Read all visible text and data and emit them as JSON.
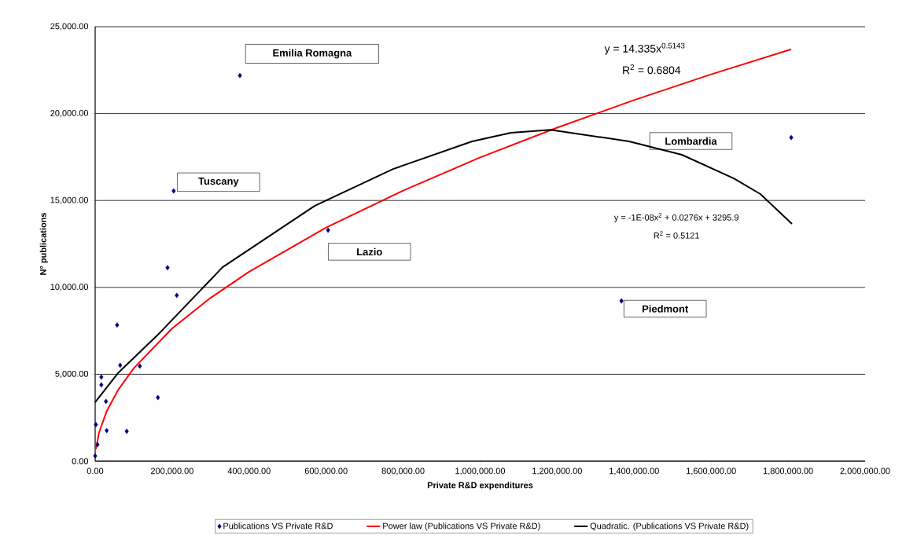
{
  "chart_data": {
    "type": "scatter",
    "xlabel": "Private R&D expenditures",
    "ylabel": "N° publications",
    "xlim": [
      0,
      2000000
    ],
    "ylim": [
      0,
      25000
    ],
    "xticks": [
      {
        "value": 0,
        "label": "0.00"
      },
      {
        "value": 200000,
        "label": "200,000.00"
      },
      {
        "value": 400000,
        "label": "400,000.00"
      },
      {
        "value": 600000,
        "label": "600,000.00"
      },
      {
        "value": 800000,
        "label": "800,000.00"
      },
      {
        "value": 1000000,
        "label": "1,000,000.00"
      },
      {
        "value": 1200000,
        "label": "1,200,000.00"
      },
      {
        "value": 1400000,
        "label": "1,400,000.00"
      },
      {
        "value": 1600000,
        "label": "1,600,000.00"
      },
      {
        "value": 1800000,
        "label": "1,800,000.00"
      },
      {
        "value": 2000000,
        "label": "2,000,000.00"
      }
    ],
    "yticks": [
      {
        "value": 0,
        "label": "0.00"
      },
      {
        "value": 5000,
        "label": "5,000.00"
      },
      {
        "value": 10000,
        "label": "10,000.00"
      },
      {
        "value": 15000,
        "label": "15,000.00"
      },
      {
        "value": 20000,
        "label": "20,000.00"
      },
      {
        "value": 25000,
        "label": "25,000.00"
      }
    ],
    "grid": "y",
    "legend": "bottom",
    "series": [
      {
        "name": "Publications VS Private R&D",
        "marker": "diamond",
        "color": "#000080",
        "x": [
          0,
          2000,
          6000,
          16000,
          16000,
          28000,
          30000,
          57000,
          65000,
          82000,
          116000,
          163000,
          188000,
          212000,
          204000,
          376000,
          605000,
          1367000,
          1808000
        ],
        "values": [
          300,
          2100,
          950,
          4840,
          4390,
          3440,
          1760,
          7830,
          5520,
          1720,
          5470,
          3660,
          11130,
          9540,
          15550,
          22190,
          13290,
          9220,
          18620
        ]
      },
      {
        "name": "Power law (Publications VS Private R&D)",
        "type": "line",
        "marker": "none",
        "color": "#ff0000",
        "x": [
          2000,
          10000,
          30000,
          60000,
          100000,
          200000,
          300000,
          400000,
          600000,
          800000,
          1000000,
          1200000,
          1400000,
          1600000,
          1808000
        ],
        "values": [
          700,
          1640,
          2880,
          4110,
          5340,
          7640,
          9400,
          10900,
          13440,
          15570,
          17480,
          19190,
          20780,
          22260,
          23700
        ]
      },
      {
        "name": "Quadratic. (Publications VS Private R&D)",
        "type": "line",
        "marker": "none",
        "color": "#000000",
        "x": [
          0,
          59000,
          161000,
          331000,
          570000,
          774000,
          979000,
          1080000,
          1183000,
          1387000,
          1524000,
          1659000,
          1728000,
          1810000
        ],
        "values": [
          3390,
          5060,
          7230,
          11160,
          14690,
          16810,
          18400,
          18900,
          19070,
          18400,
          17630,
          16270,
          15370,
          13650
        ]
      }
    ],
    "annotations": [
      "Emilia Romagna",
      "Tuscany",
      "Lazio",
      "Piedmont",
      "Lombardia",
      "y = 14.335x$^{0.5143}$",
      "R$^{2}$ = 0.6804",
      "y = -1E-08x$^{2}$ + 0.0276x + 3295.9",
      "R$^{2}$ = 0.5121"
    ]
  }
}
